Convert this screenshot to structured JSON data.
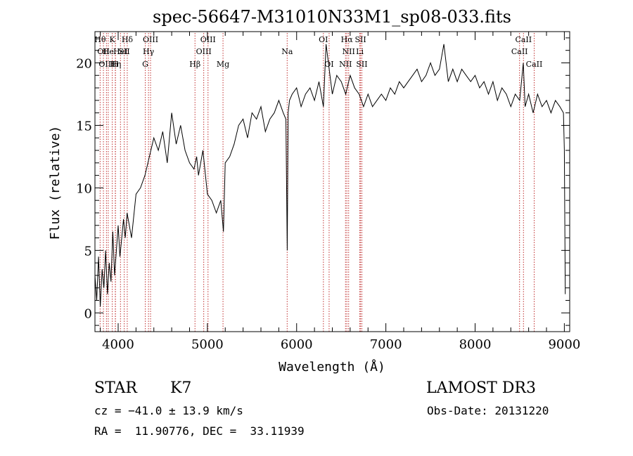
{
  "chart_data": {
    "type": "line",
    "title": "spec-56647-M31010N33M1_sp08-033.fits",
    "xlabel": "Wavelength (Å)",
    "ylabel": "Flux (relative)",
    "xlim": [
      3740,
      9060
    ],
    "ylim": [
      -1.5,
      22.5
    ],
    "x_ticks": [
      4000,
      5000,
      6000,
      7000,
      8000,
      9000
    ],
    "x_tick_labels": [
      "4000",
      "5000",
      "6000",
      "7000",
      "8000",
      "9000"
    ],
    "y_ticks": [
      0,
      5,
      10,
      15,
      20
    ],
    "y_tick_labels": [
      "0",
      "5",
      "10",
      "15",
      "20"
    ],
    "grid": false,
    "series": [
      {
        "name": "flux",
        "x": [
          3740,
          3760,
          3780,
          3800,
          3820,
          3840,
          3860,
          3880,
          3900,
          3920,
          3940,
          3960,
          3980,
          4000,
          4020,
          4040,
          4060,
          4080,
          4100,
          4150,
          4200,
          4250,
          4300,
          4350,
          4400,
          4450,
          4500,
          4550,
          4600,
          4650,
          4700,
          4750,
          4800,
          4850,
          4880,
          4900,
          4950,
          5000,
          5050,
          5100,
          5150,
          5180,
          5200,
          5250,
          5300,
          5350,
          5400,
          5450,
          5500,
          5550,
          5600,
          5650,
          5700,
          5750,
          5800,
          5850,
          5880,
          5895,
          5905,
          5920,
          5950,
          6000,
          6050,
          6100,
          6150,
          6200,
          6250,
          6300,
          6330,
          6400,
          6450,
          6500,
          6550,
          6600,
          6650,
          6700,
          6750,
          6800,
          6850,
          6900,
          6950,
          7000,
          7050,
          7100,
          7150,
          7200,
          7250,
          7300,
          7350,
          7400,
          7450,
          7500,
          7550,
          7600,
          7650,
          7700,
          7750,
          7800,
          7850,
          7900,
          7950,
          8000,
          8050,
          8100,
          8150,
          8200,
          8250,
          8300,
          8350,
          8400,
          8450,
          8500,
          8540,
          8560,
          8600,
          8650,
          8700,
          8750,
          8800,
          8850,
          8900,
          8950,
          8990,
          9000,
          9010
        ],
        "values": [
          3.0,
          1.0,
          4.5,
          0.5,
          3.5,
          2.0,
          5.0,
          1.5,
          4.0,
          2.5,
          6.5,
          3.0,
          5.0,
          7.0,
          4.5,
          6.0,
          7.5,
          6.0,
          8.0,
          6.0,
          9.5,
          10.0,
          11.0,
          12.5,
          14.0,
          13.0,
          14.5,
          12.0,
          16.0,
          13.5,
          15.0,
          13.0,
          12.0,
          11.5,
          12.5,
          11.0,
          13.0,
          9.5,
          9.0,
          8.0,
          9.0,
          6.5,
          12.0,
          12.5,
          13.5,
          15.0,
          15.5,
          14.0,
          16.0,
          15.5,
          16.5,
          14.5,
          15.5,
          16.0,
          17.0,
          16.0,
          15.5,
          5.0,
          16.0,
          17.0,
          17.5,
          18.0,
          16.5,
          17.5,
          18.0,
          17.0,
          18.5,
          16.5,
          21.5,
          17.5,
          19.0,
          18.5,
          17.5,
          19.0,
          18.0,
          17.5,
          16.5,
          17.5,
          16.5,
          17.0,
          17.5,
          17.0,
          18.0,
          17.5,
          18.5,
          18.0,
          18.5,
          19.0,
          19.5,
          18.5,
          19.0,
          20.0,
          19.0,
          19.5,
          21.5,
          18.5,
          19.5,
          18.5,
          19.5,
          19.0,
          18.5,
          19.0,
          18.0,
          18.5,
          17.5,
          18.5,
          17.0,
          18.0,
          17.5,
          16.5,
          17.5,
          17.0,
          20.0,
          16.5,
          17.5,
          16.0,
          17.5,
          16.5,
          17.0,
          16.0,
          17.0,
          16.5,
          16.0,
          13.0,
          1.5
        ]
      }
    ],
    "line_markers": [
      {
        "wavelength": 3798,
        "label": "Hθ",
        "row": 1
      },
      {
        "wavelength": 3835,
        "label": "OII",
        "row": 2
      },
      {
        "wavelength": 3869,
        "label": "OIII",
        "row": 3
      },
      {
        "wavelength": 3889,
        "label": "He",
        "row": 2
      },
      {
        "wavelength": 3934,
        "label": "K",
        "row": 1
      },
      {
        "wavelength": 3970,
        "label": "Hη",
        "row": 3
      },
      {
        "wavelength": 4026,
        "label": "HeI",
        "row": 2
      },
      {
        "wavelength": 4068,
        "label": "SII",
        "row": 2
      },
      {
        "wavelength": 4102,
        "label": "Hδ",
        "row": 1
      },
      {
        "wavelength": 3968,
        "label": "H",
        "row": 3
      },
      {
        "wavelength": 4304,
        "label": "G",
        "row": 3
      },
      {
        "wavelength": 4340,
        "label": "Hγ",
        "row": 2
      },
      {
        "wavelength": 4363,
        "label": "OIII",
        "row": 1
      },
      {
        "wavelength": 4861,
        "label": "Hβ",
        "row": 3
      },
      {
        "wavelength": 4959,
        "label": "OIII",
        "row": 2
      },
      {
        "wavelength": 5007,
        "label": "OIII",
        "row": 1
      },
      {
        "wavelength": 5175,
        "label": "Mg",
        "row": 3
      },
      {
        "wavelength": 5894,
        "label": "Na",
        "row": 2
      },
      {
        "wavelength": 6300,
        "label": "OI",
        "row": 1
      },
      {
        "wavelength": 6364,
        "label": "OI",
        "row": 3
      },
      {
        "wavelength": 6548,
        "label": "NII",
        "row": 3
      },
      {
        "wavelength": 6563,
        "label": "Hα",
        "row": 1
      },
      {
        "wavelength": 6583,
        "label": "NII",
        "row": 2
      },
      {
        "wavelength": 6708,
        "label": "Li",
        "row": 2
      },
      {
        "wavelength": 6716,
        "label": "SII",
        "row": 1
      },
      {
        "wavelength": 6731,
        "label": "SII",
        "row": 3
      },
      {
        "wavelength": 8498,
        "label": "CaII",
        "row": 2
      },
      {
        "wavelength": 8542,
        "label": "CaII",
        "row": 1
      },
      {
        "wavelength": 8662,
        "label": "CaII",
        "row": 3
      }
    ]
  },
  "footer": {
    "object_class": "STAR",
    "subclass": "K7",
    "survey": "LAMOST DR3",
    "cz": "cz = −41.0 ± 13.9 km/s",
    "obs_date": "Obs-Date: 20131220",
    "coords": "RA =  11.90776, DEC =  33.11939"
  },
  "colors": {
    "marker_line": "#c03030",
    "spectrum": "#000000"
  }
}
